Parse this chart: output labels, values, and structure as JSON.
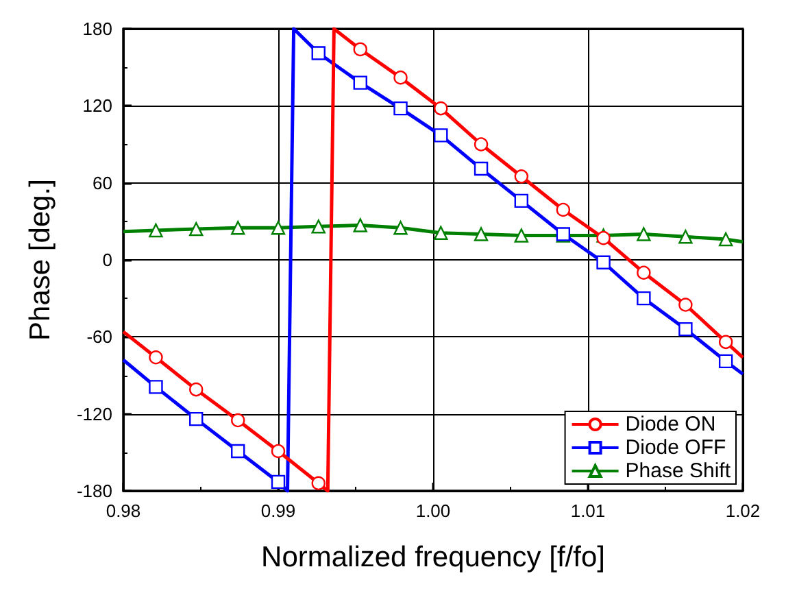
{
  "chart_data": {
    "type": "line",
    "xlabel": "Normalized frequency [f/fo]",
    "ylabel": "Phase [deg.]",
    "xlim": [
      0.98,
      1.02
    ],
    "xticks": [
      0.98,
      0.99,
      "1.00",
      1.01,
      1.02
    ],
    "ylim": [
      -180,
      180
    ],
    "yticks": [
      -180,
      -120,
      -60,
      0,
      60,
      120,
      180
    ],
    "grid": true,
    "legend": "bottom right",
    "line_style": "solid",
    "series": [
      {
        "name": "Diode ON",
        "color": "#ff0000",
        "marker": "circle",
        "x": [
          0.98,
          0.9821,
          0.9847,
          0.9874,
          0.99,
          0.9926,
          0.9932,
          0.9936,
          0.9953,
          0.9979,
          1.0005,
          1.0031,
          1.0057,
          1.0084,
          1.011,
          1.0136,
          1.0163,
          1.0189,
          1.02
        ],
        "values": [
          -56,
          -76,
          -101,
          -125,
          -149,
          -174,
          -180,
          180,
          164,
          142,
          118,
          90,
          65,
          39,
          17,
          -10,
          -35,
          -64,
          -76
        ]
      },
      {
        "name": "Diode OFF",
        "color": "#0000ff",
        "marker": "square",
        "x": [
          0.98,
          0.9821,
          0.9847,
          0.9874,
          0.99,
          0.9906,
          0.991,
          0.9926,
          0.9953,
          0.9979,
          1.0005,
          1.0031,
          1.0057,
          1.0084,
          1.011,
          1.0136,
          1.0163,
          1.0189,
          1.02
        ],
        "values": [
          -78,
          -99,
          -124,
          -149,
          -173,
          -180,
          180,
          161,
          138,
          118,
          97,
          71,
          46,
          20,
          -2,
          -30,
          -54,
          -79,
          -89
        ]
      },
      {
        "name": "Phase Shift",
        "color": "#008000",
        "marker": "triangle",
        "x": [
          0.98,
          0.9821,
          0.9847,
          0.9874,
          0.99,
          0.9926,
          0.9953,
          0.9979,
          1.0005,
          1.0031,
          1.0057,
          1.0084,
          1.011,
          1.0136,
          1.0163,
          1.0189,
          1.02
        ],
        "values": [
          22,
          23,
          24,
          25,
          25,
          26,
          27,
          25,
          21,
          20,
          19,
          19,
          19,
          20,
          18,
          16,
          14
        ]
      }
    ]
  }
}
